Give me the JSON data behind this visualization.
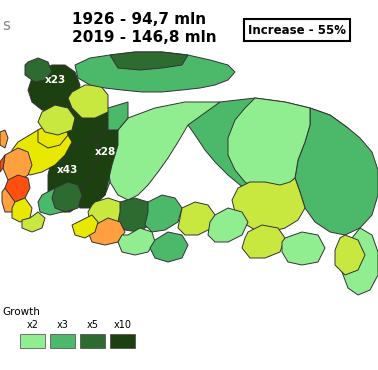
{
  "bg_color": "#ffffff",
  "year1": "1926",
  "pop1": "94,7 mln",
  "year2": "2019",
  "pop2": "146,8 mln",
  "increase": "Increase - 55%",
  "legend_title": "Growth",
  "legend_labels": [
    "x2",
    "x3",
    "x5",
    "x10"
  ],
  "legend_colors": [
    "#90EE90",
    "#4CB86A",
    "#2E6B30",
    "#1C4010"
  ],
  "ann_x23": "x23",
  "ann_x28": "x28",
  "ann_x43": "x43",
  "col_lg": "#90EE90",
  "col_yg": "#C8E840",
  "col_mg": "#4CB86A",
  "col_dg": "#2E6B30",
  "col_vdg": "#1C4010",
  "col_yw": "#E8E800",
  "col_org": "#FFA040",
  "col_dog": "#FF5010",
  "figw": 3.78,
  "figh": 3.7,
  "dpi": 100
}
